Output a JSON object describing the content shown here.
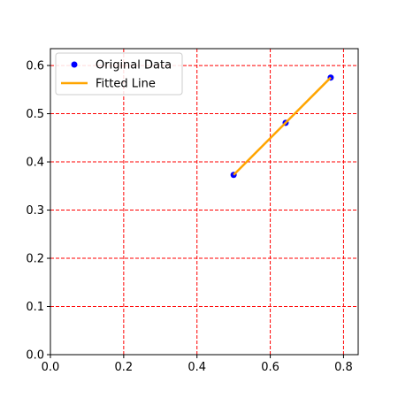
{
  "chart_data": {
    "type": "scatter",
    "title": "",
    "xlabel": "",
    "ylabel": "",
    "xlim": [
      0,
      0.84
    ],
    "ylim": [
      0,
      0.635
    ],
    "xticks": [
      0.0,
      0.2,
      0.4,
      0.6,
      0.8
    ],
    "xtick_labels": [
      "0.0",
      "0.2",
      "0.4",
      "0.6",
      "0.8"
    ],
    "yticks": [
      0.0,
      0.1,
      0.2,
      0.3,
      0.4,
      0.5,
      0.6
    ],
    "ytick_labels": [
      "0.0",
      "0.1",
      "0.2",
      "0.3",
      "0.4",
      "0.5",
      "0.6"
    ],
    "grid": true,
    "grid_color": "#ff0000",
    "legend_position": "top-left",
    "series": [
      {
        "name": "Original Data",
        "kind": "scatter",
        "color": "#0000ff",
        "x": [
          0.5,
          0.642,
          0.765
        ],
        "y": [
          0.373,
          0.481,
          0.575
        ]
      },
      {
        "name": "Fitted Line",
        "kind": "line",
        "color": "#ffa500",
        "x": [
          0.5,
          0.765
        ],
        "y": [
          0.373,
          0.575
        ]
      }
    ]
  }
}
